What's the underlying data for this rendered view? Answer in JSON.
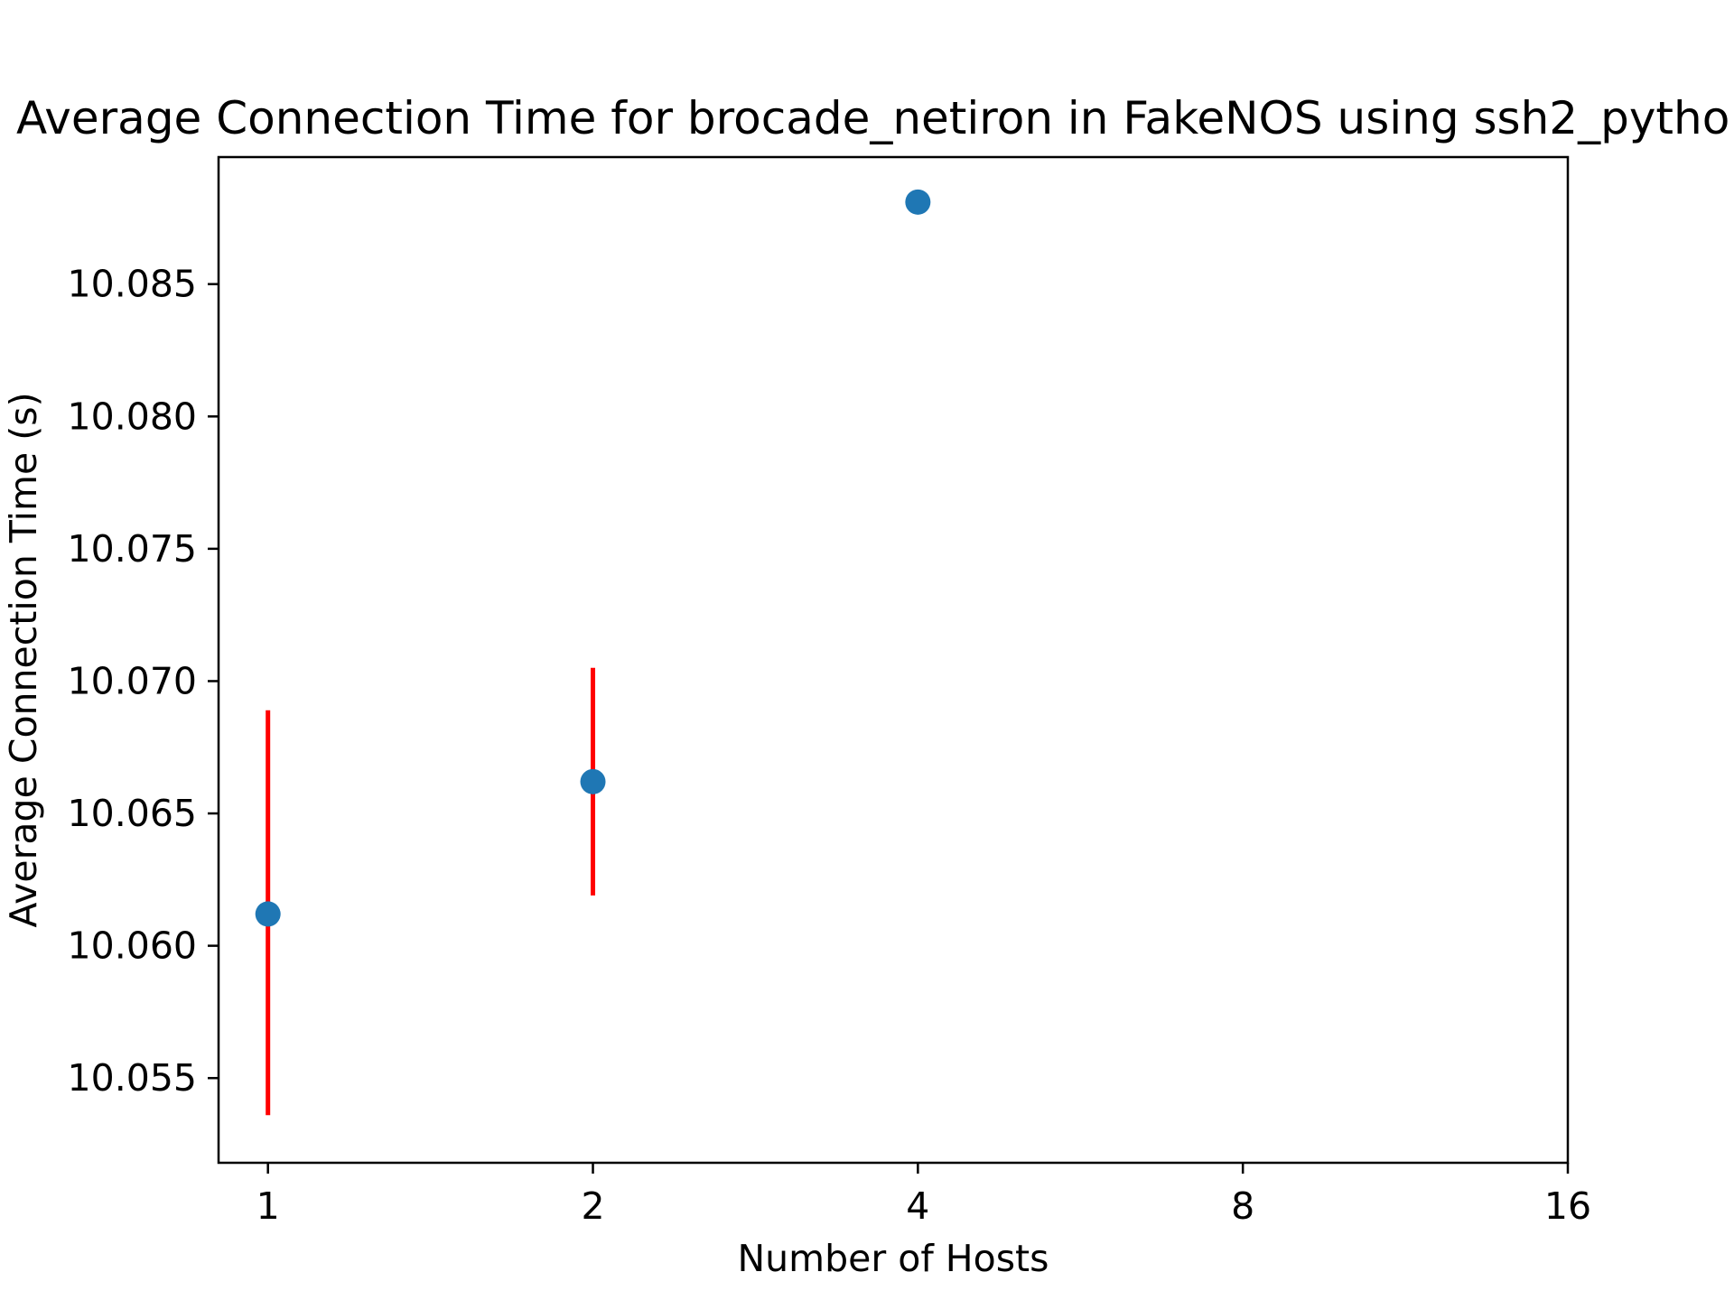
{
  "chart_data": {
    "type": "scatter",
    "title": "Average Connection Time for brocade_netiron in FakeNOS using ssh2_pytho",
    "xlabel": "Number of Hosts",
    "ylabel": "Average Connection Time (s)",
    "x_scale": "log2",
    "xlim": [
      0.9,
      16
    ],
    "ylim": [
      10.0518,
      10.0898
    ],
    "x_ticks": [
      1,
      2,
      4,
      8,
      16
    ],
    "x_tick_labels": [
      "1",
      "2",
      "4",
      "8",
      "16"
    ],
    "y_ticks": [
      10.055,
      10.06,
      10.065,
      10.07,
      10.075,
      10.08,
      10.085
    ],
    "y_tick_labels": [
      "10.055",
      "10.060",
      "10.065",
      "10.070",
      "10.075",
      "10.080",
      "10.085"
    ],
    "grid": false,
    "legend": "none",
    "marker_color": "#1f77b4",
    "errorbar_color": "#ff0000",
    "points": [
      {
        "x": 1,
        "y": 10.0612,
        "y_low": 10.0536,
        "y_high": 10.0689
      },
      {
        "x": 2,
        "y": 10.0662,
        "y_low": 10.0619,
        "y_high": 10.0705
      },
      {
        "x": 4,
        "y": 10.0881,
        "y_low": null,
        "y_high": null
      }
    ]
  }
}
